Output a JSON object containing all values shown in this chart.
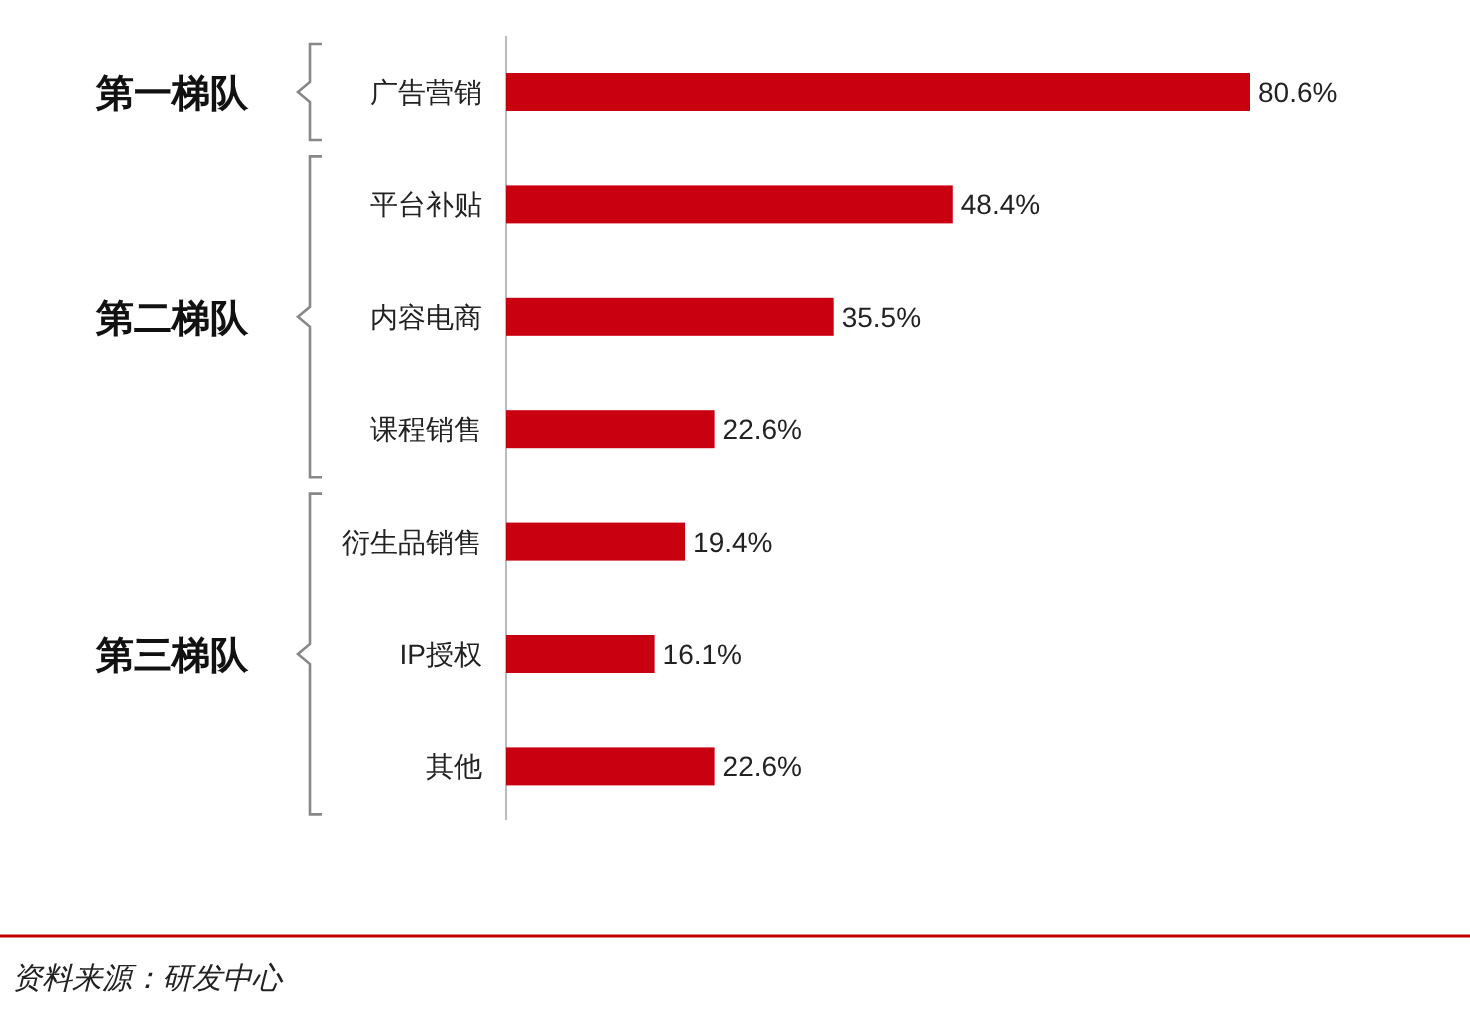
{
  "chart_data": {
    "type": "bar",
    "orientation": "horizontal",
    "categories": [
      "广告营销",
      "平台补贴",
      "内容电商",
      "课程销售",
      "衍生品销售",
      "IP授权",
      "其他"
    ],
    "values": [
      80.6,
      48.4,
      35.5,
      22.6,
      19.4,
      16.1,
      22.6
    ],
    "value_labels": [
      "80.6%",
      "48.4%",
      "35.5%",
      "22.6%",
      "19.4%",
      "16.1%",
      "22.6%"
    ],
    "color": "#c8000f",
    "annotations": [
      "第一梯队",
      "第二梯队",
      "第三梯队",
      "资料来源：研发中心"
    ]
  }
}
